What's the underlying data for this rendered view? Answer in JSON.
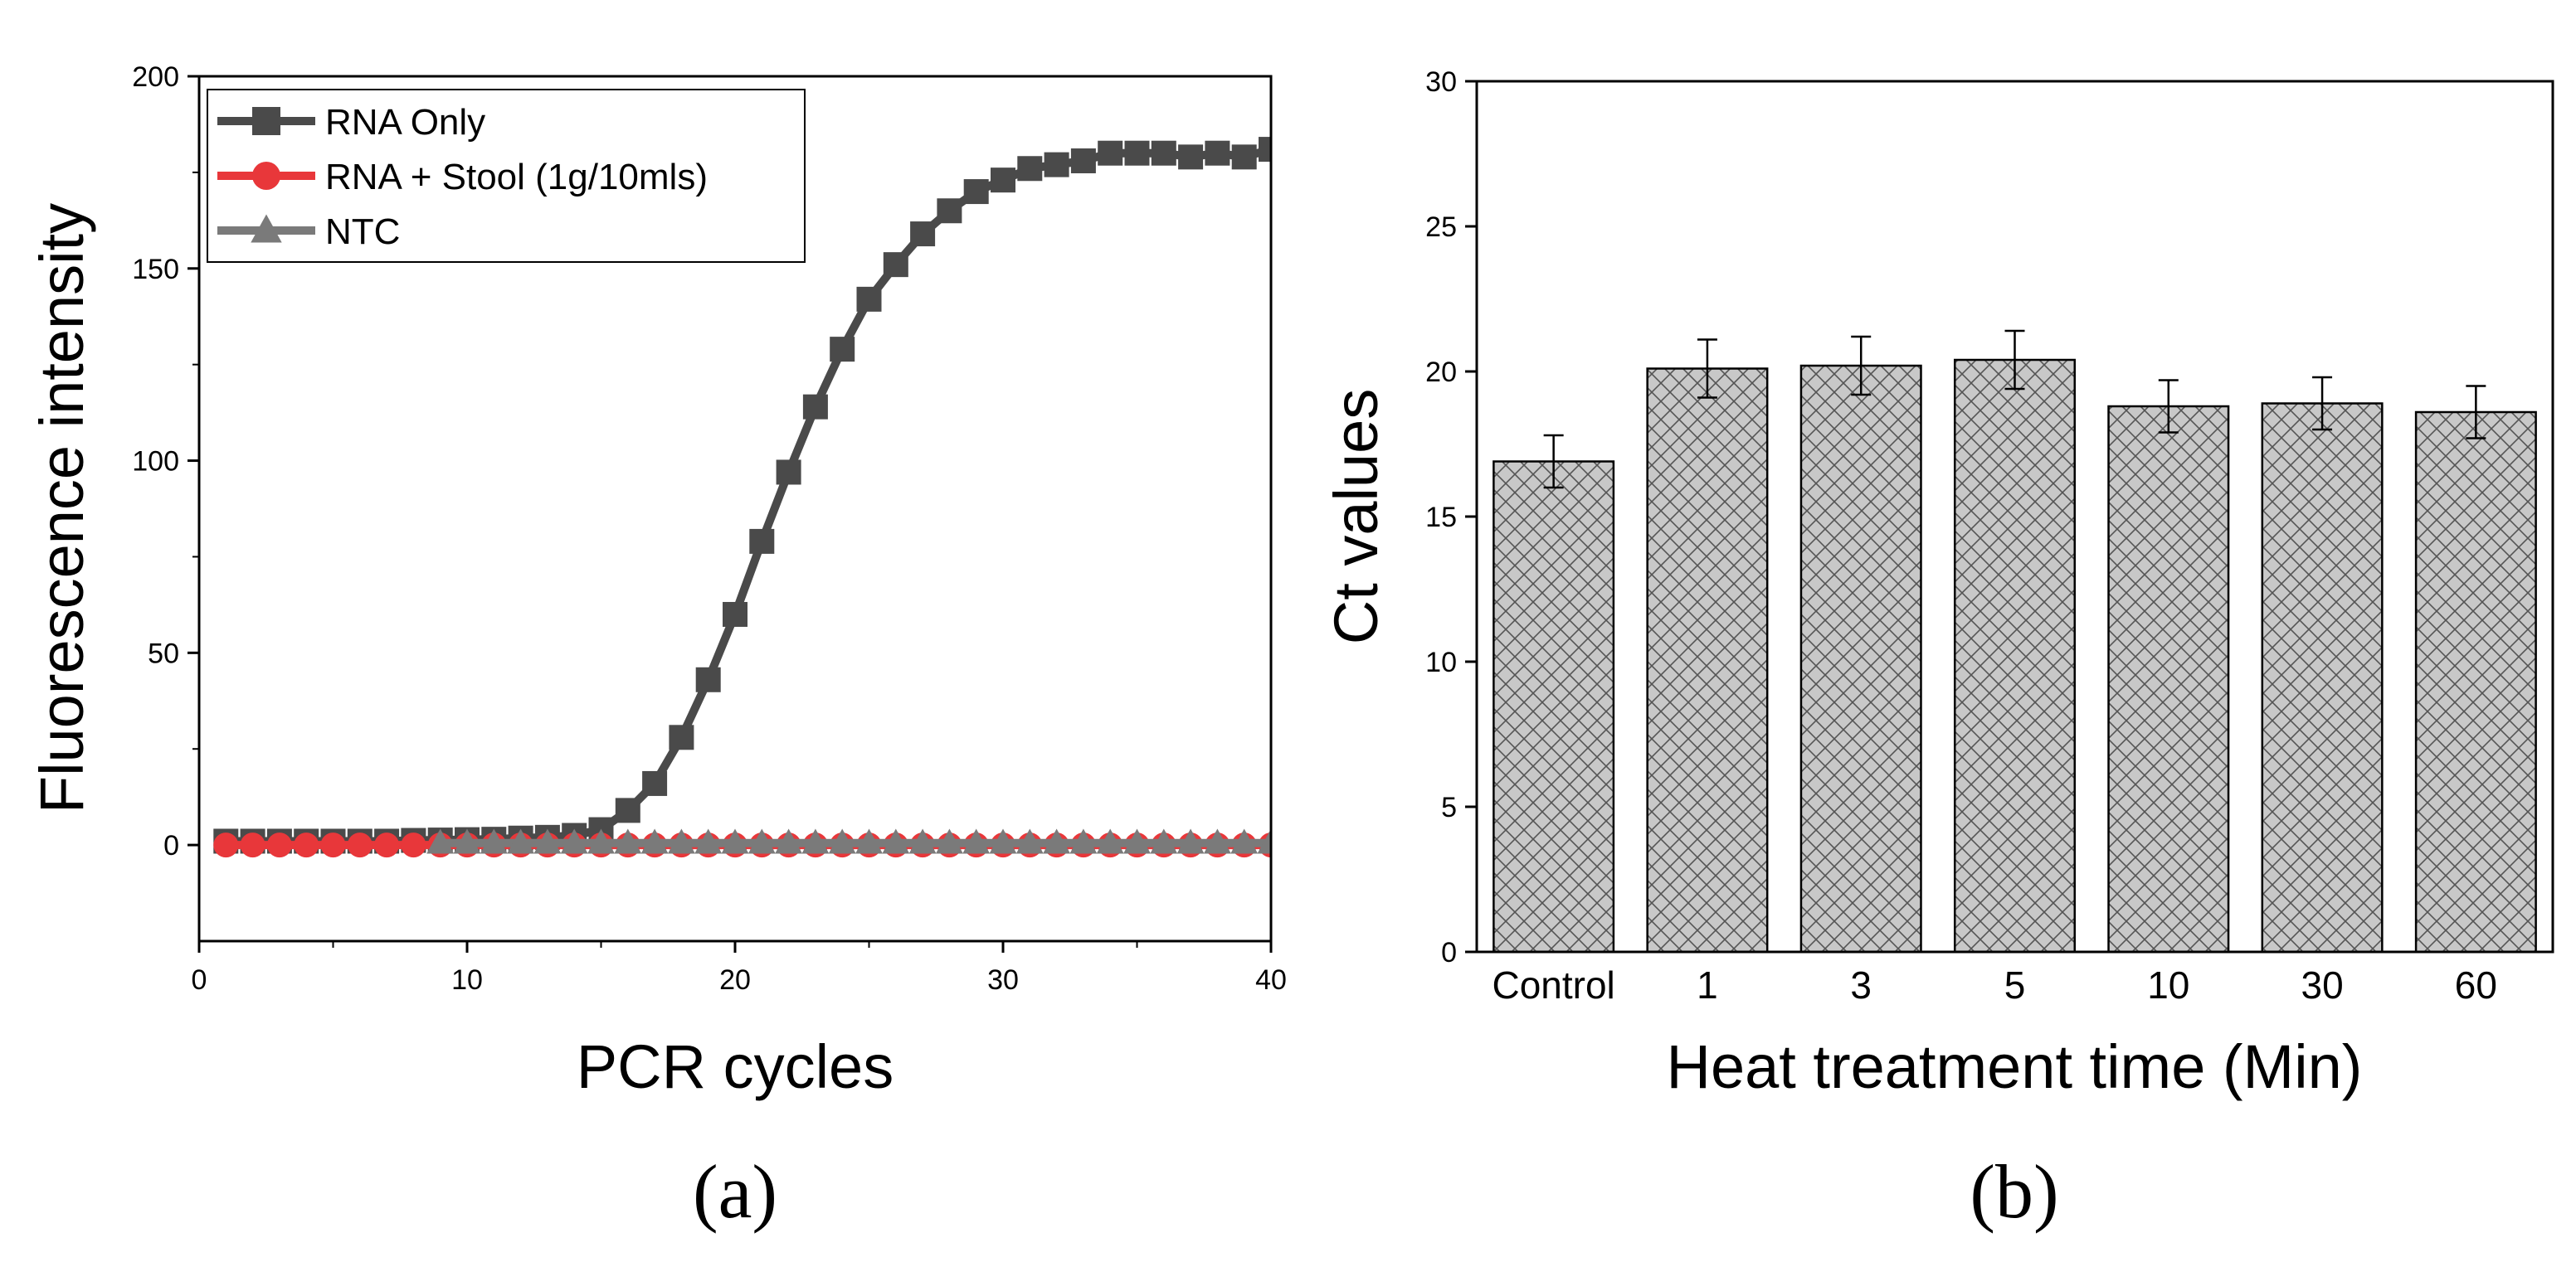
{
  "chart_data": [
    {
      "panel": "(a)",
      "type": "line",
      "xlabel": "PCR cycles",
      "ylabel": "Fluorescence intensity",
      "xlim": [
        0,
        40
      ],
      "ylim": [
        -25,
        200
      ],
      "xticks": [
        0,
        10,
        20,
        30,
        40
      ],
      "yticks": [
        0,
        50,
        100,
        150,
        200
      ],
      "legend_position": "top-left",
      "series": [
        {
          "name": "RNA Only",
          "color": "#4a4a4a",
          "marker": "square",
          "x": [
            1,
            2,
            3,
            4,
            5,
            6,
            7,
            8,
            9,
            10,
            11,
            12,
            13,
            14,
            15,
            16,
            17,
            18,
            19,
            20,
            21,
            22,
            23,
            24,
            25,
            26,
            27,
            28,
            29,
            30,
            31,
            32,
            33,
            34,
            35,
            36,
            37,
            38,
            39,
            40
          ],
          "y": [
            1,
            1,
            1,
            1,
            1,
            1,
            1,
            1.2,
            1.3,
            1.4,
            1.5,
            1.8,
            2,
            2.5,
            4,
            9,
            16,
            28,
            43,
            60,
            79,
            97,
            114,
            129,
            142,
            151,
            159,
            165,
            170,
            173,
            176,
            177,
            178,
            180,
            180,
            180,
            179,
            180,
            179,
            181
          ]
        },
        {
          "name": "RNA + Stool (1g/10mls)",
          "color": "#e8373a",
          "marker": "circle",
          "x": [
            1,
            2,
            3,
            4,
            5,
            6,
            7,
            8,
            9,
            10,
            11,
            12,
            13,
            14,
            15,
            16,
            17,
            18,
            19,
            20,
            21,
            22,
            23,
            24,
            25,
            26,
            27,
            28,
            29,
            30,
            31,
            32,
            33,
            34,
            35,
            36,
            37,
            38,
            39,
            40
          ],
          "y": [
            0,
            0,
            0,
            0,
            0,
            0,
            0,
            0,
            0,
            0,
            0,
            0,
            0,
            0,
            0,
            0,
            0,
            0,
            0,
            0,
            0,
            0,
            0,
            0,
            0,
            0,
            0,
            0,
            0,
            0,
            0,
            0,
            0,
            0,
            0,
            0,
            0,
            0,
            0,
            0
          ]
        },
        {
          "name": "NTC",
          "color": "#7a7a7a",
          "marker": "triangle",
          "x": [
            9,
            10,
            11,
            12,
            13,
            14,
            15,
            16,
            17,
            18,
            19,
            20,
            21,
            22,
            23,
            24,
            25,
            26,
            27,
            28,
            29,
            30,
            31,
            32,
            33,
            34,
            35,
            36,
            37,
            38,
            39,
            40
          ],
          "y": [
            0.5,
            0.5,
            0.5,
            0.5,
            0.5,
            0.5,
            0.5,
            0.5,
            0.5,
            0.5,
            0.5,
            0.5,
            0.5,
            0.5,
            0.5,
            0.5,
            0.5,
            0.5,
            0.5,
            0.5,
            0.5,
            0.5,
            0.5,
            0.5,
            0.5,
            0.5,
            0.5,
            0.5,
            0.5,
            0.5,
            0.5,
            0.5
          ]
        }
      ]
    },
    {
      "panel": "(b)",
      "type": "bar",
      "xlabel": "Heat treatment time (Min)",
      "ylabel": "Ct values",
      "ylim": [
        0,
        30
      ],
      "yticks": [
        0,
        5,
        10,
        15,
        20,
        25,
        30
      ],
      "categories": [
        "Control",
        "1",
        "3",
        "5",
        "10",
        "30",
        "60"
      ],
      "values": [
        16.9,
        20.1,
        20.2,
        20.4,
        18.8,
        18.9,
        18.6
      ],
      "errors": [
        0.9,
        1.0,
        1.0,
        1.0,
        0.9,
        0.9,
        0.9
      ],
      "fill": "#c8c8c8",
      "pattern": "crosshatch"
    }
  ]
}
